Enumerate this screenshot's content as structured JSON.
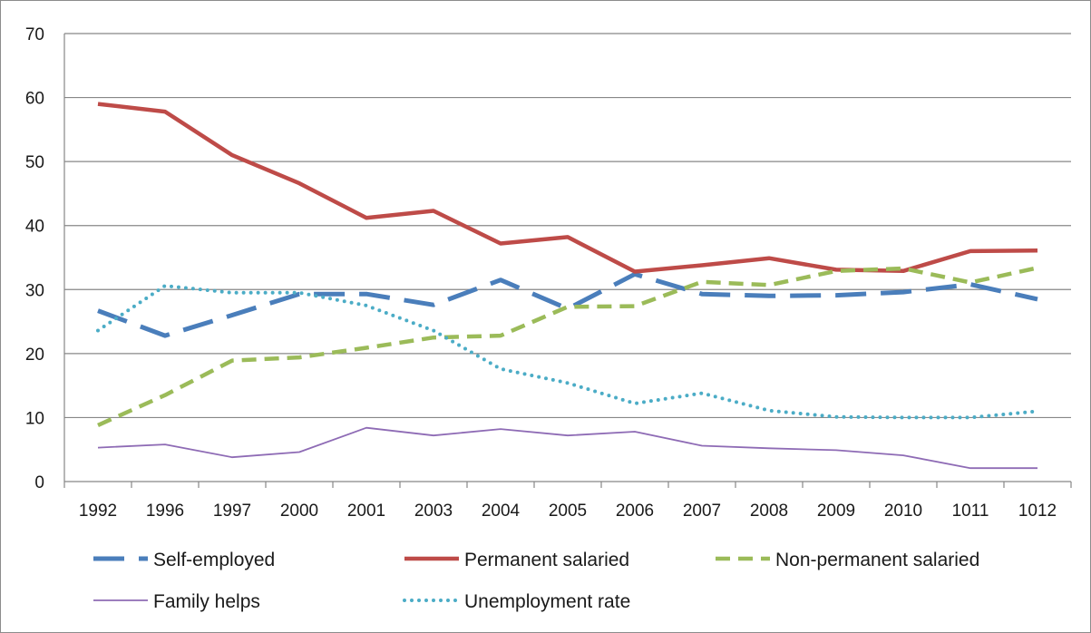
{
  "chart_data": {
    "type": "line",
    "title": "",
    "xlabel": "",
    "ylabel": "",
    "categories": [
      "1992",
      "1996",
      "1997",
      "2000",
      "2001",
      "2003",
      "2004",
      "2005",
      "2006",
      "2007",
      "2008",
      "2009",
      "2010",
      "1011",
      "1012"
    ],
    "ylim": [
      0,
      70
    ],
    "yticks": [
      0,
      10,
      20,
      30,
      40,
      50,
      60,
      70
    ],
    "grid": "horizontal",
    "legend_position": "bottom",
    "series": [
      {
        "name": "Self-employed",
        "color": "#4a7ebb",
        "style": "long-dash",
        "values": [
          26.7,
          22.8,
          26.0,
          29.3,
          29.3,
          27.6,
          31.5,
          27.0,
          32.4,
          29.3,
          29.0,
          29.1,
          29.6,
          30.8,
          28.5
        ]
      },
      {
        "name": "Permanent salaried",
        "color": "#be4b48",
        "style": "solid-thick",
        "values": [
          59.0,
          57.8,
          51.0,
          46.6,
          41.2,
          42.3,
          37.2,
          38.2,
          32.8,
          33.8,
          34.9,
          33.1,
          32.9,
          36.0,
          36.1
        ]
      },
      {
        "name": "Non-permanent salaried",
        "color": "#9bbb59",
        "style": "short-dash",
        "values": [
          8.8,
          13.5,
          18.9,
          19.4,
          20.9,
          22.5,
          22.8,
          27.3,
          27.4,
          31.2,
          30.7,
          32.9,
          33.3,
          31.1,
          33.4
        ]
      },
      {
        "name": "Family helps",
        "color": "#8e6bb5",
        "style": "thin",
        "values": [
          5.3,
          5.8,
          3.8,
          4.6,
          8.4,
          7.2,
          8.2,
          7.2,
          7.8,
          5.6,
          5.2,
          4.9,
          4.1,
          2.1,
          2.1
        ]
      },
      {
        "name": "Unemployment rate",
        "color": "#4bacc6",
        "style": "dotted",
        "values": [
          23.6,
          30.6,
          29.5,
          29.5,
          27.5,
          23.6,
          17.6,
          15.4,
          12.2,
          13.8,
          11.1,
          10.1,
          10.0,
          10.0,
          11.0
        ]
      }
    ]
  }
}
